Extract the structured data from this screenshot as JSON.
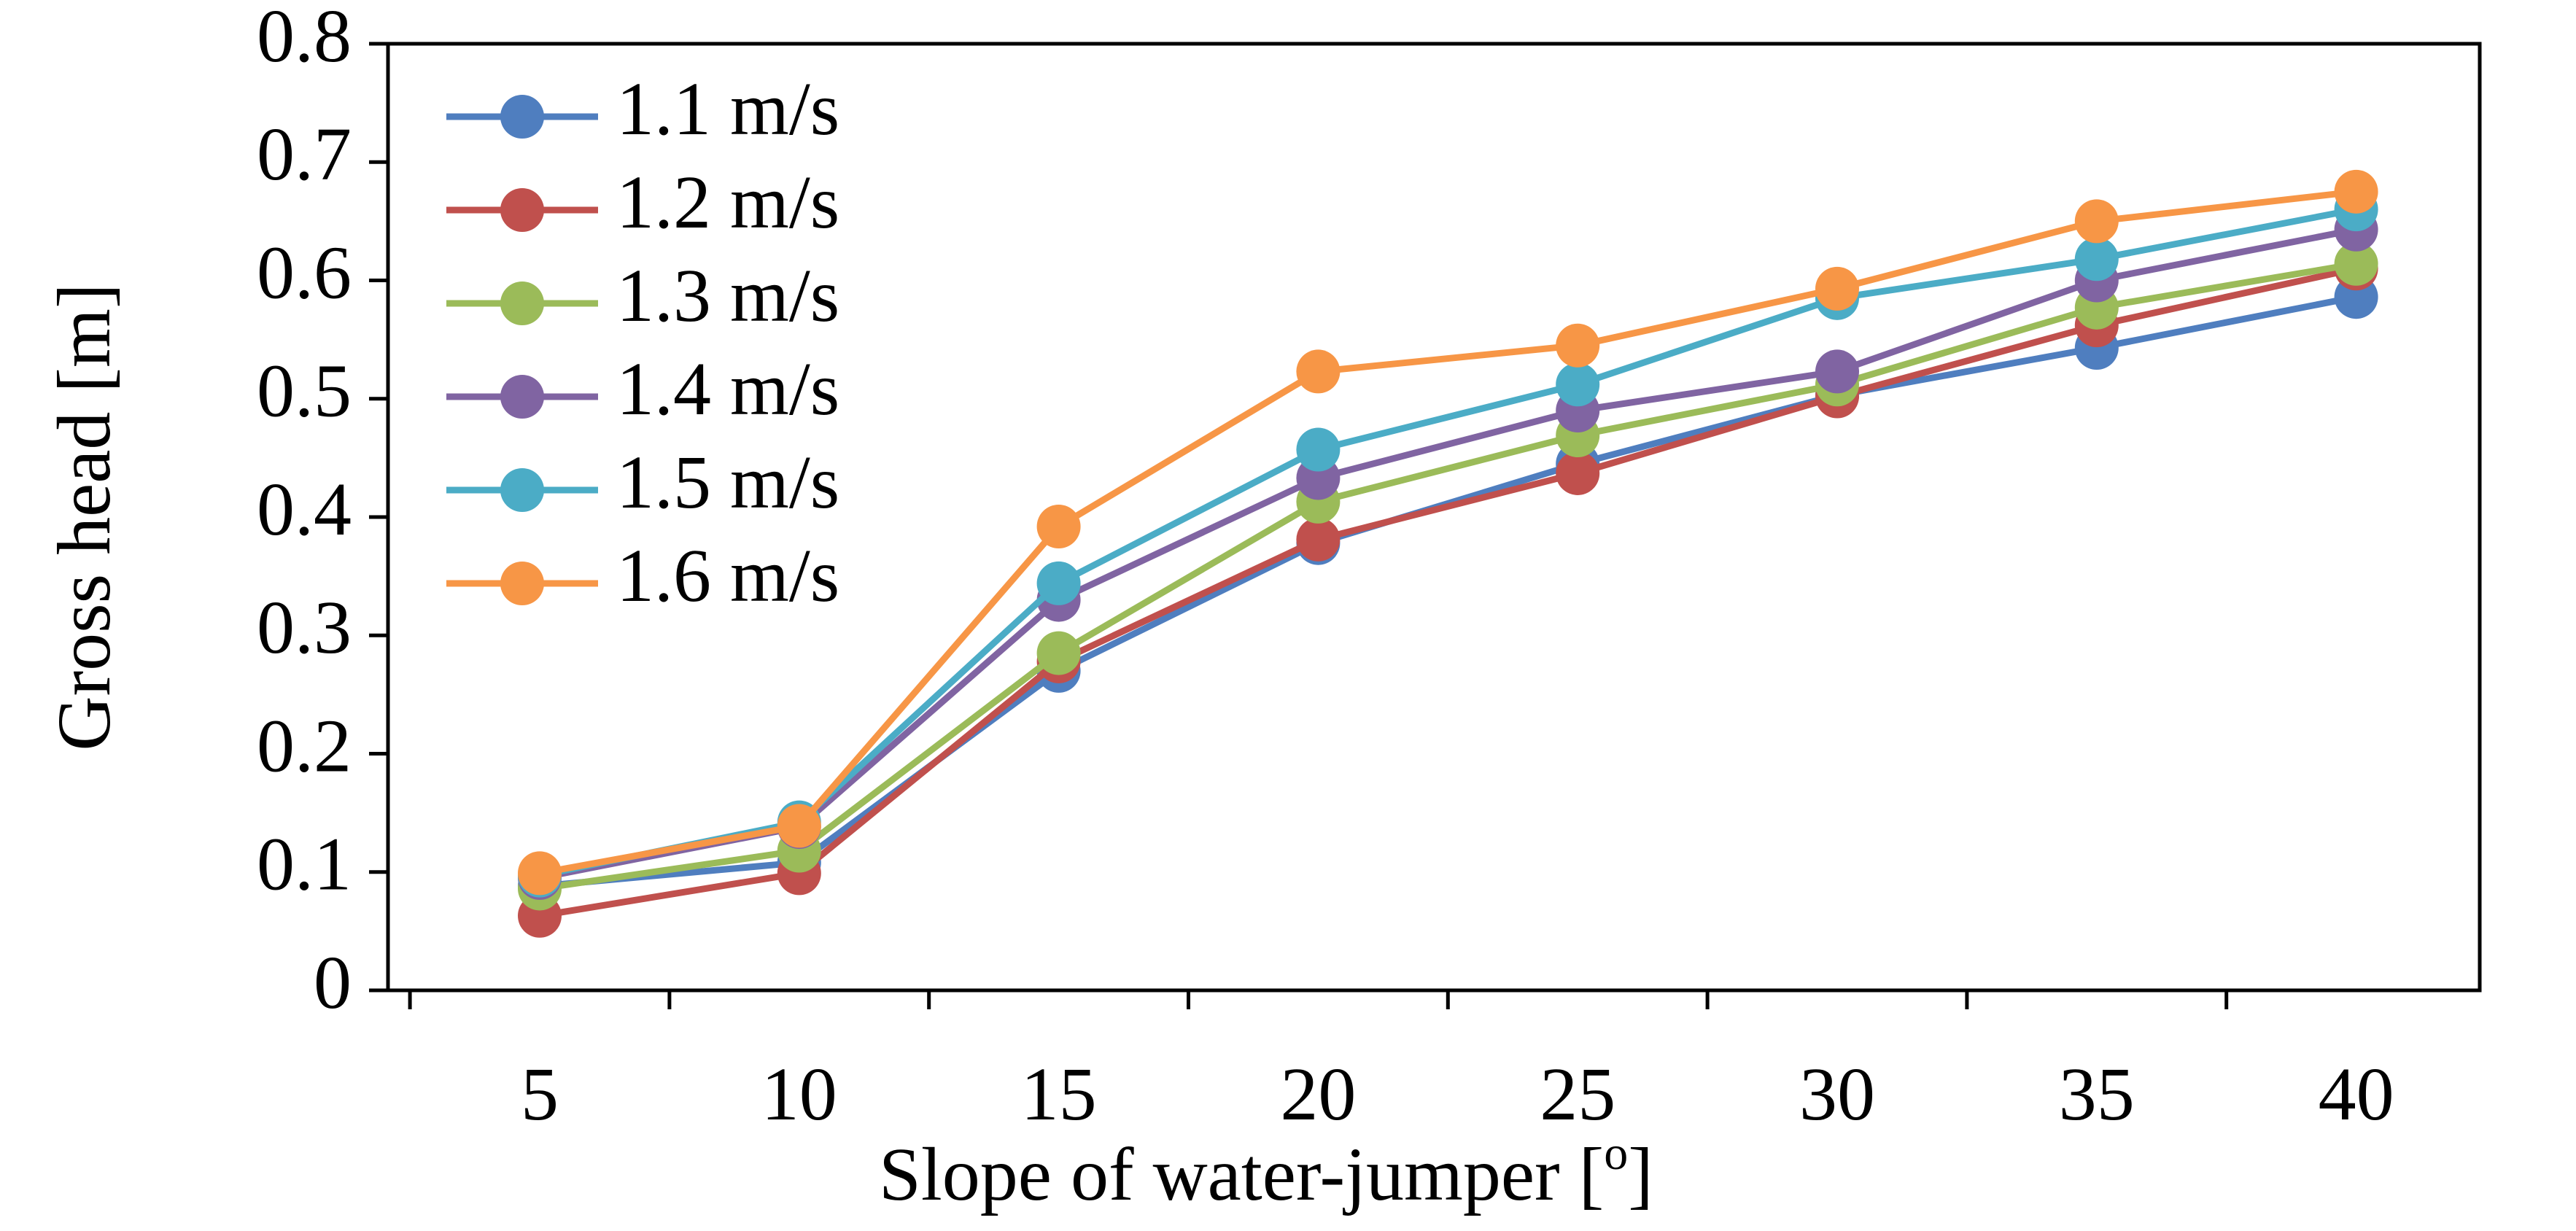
{
  "chart_data": {
    "type": "line",
    "xlabel": "Slope of water-jumper [o]",
    "xlabel_main": "Slope of water-jumper [",
    "xlabel_sup": "o",
    "xlabel_end": "]",
    "ylabel": "Gross head [m]",
    "x": [
      5,
      10,
      15,
      20,
      25,
      30,
      35,
      40
    ],
    "x_tick_labels": [
      "5",
      "10",
      "15",
      "20",
      "25",
      "30",
      "35",
      "40"
    ],
    "ylim": [
      0,
      0.8
    ],
    "y_ticks": [
      0,
      0.1,
      0.2,
      0.3,
      0.4,
      0.5,
      0.6,
      0.7,
      0.8
    ],
    "y_tick_labels": [
      "0",
      "0.1",
      "0.2",
      "0.3",
      "0.4",
      "0.5",
      "0.6",
      "0.7",
      "0.8"
    ],
    "grid": false,
    "legend_position": "top-left",
    "series": [
      {
        "name": "1.1 m/s",
        "color": "#4F7EBF",
        "values": [
          0.088,
          0.108,
          0.27,
          0.378,
          0.445,
          0.503,
          0.543,
          0.586
        ]
      },
      {
        "name": "1.2 m/s",
        "color": "#C0504D",
        "values": [
          0.063,
          0.099,
          0.278,
          0.381,
          0.437,
          0.502,
          0.562,
          0.61
        ]
      },
      {
        "name": "1.3 m/s",
        "color": "#9BBB59",
        "values": [
          0.086,
          0.118,
          0.285,
          0.413,
          0.469,
          0.512,
          0.577,
          0.614
        ]
      },
      {
        "name": "1.4 m/s",
        "color": "#8064A2",
        "values": [
          0.095,
          0.138,
          0.33,
          0.433,
          0.49,
          0.523,
          0.6,
          0.643
        ]
      },
      {
        "name": "1.5 m/s",
        "color": "#4BACC6",
        "values": [
          0.097,
          0.142,
          0.344,
          0.457,
          0.512,
          0.585,
          0.618,
          0.66
        ]
      },
      {
        "name": "1.6 m/s",
        "color": "#F79646",
        "values": [
          0.099,
          0.139,
          0.392,
          0.523,
          0.545,
          0.593,
          0.65,
          0.675
        ]
      }
    ]
  }
}
